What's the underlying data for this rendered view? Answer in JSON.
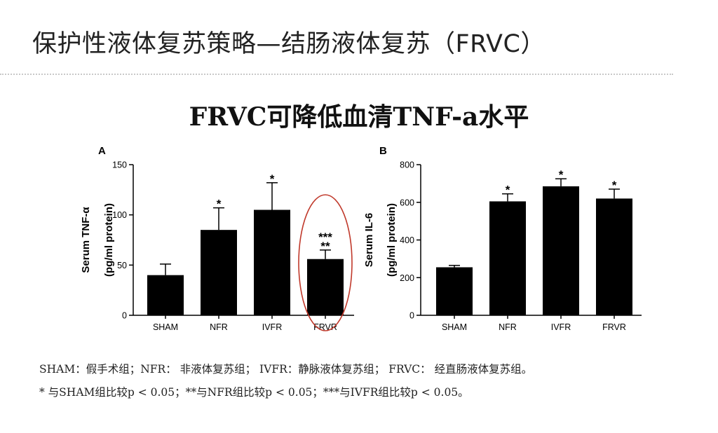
{
  "slide": {
    "title": "保护性液体复苏策略—结肠液体复苏（FRVC）",
    "headline": "FRVC可降低血清TNF-a水平"
  },
  "chart_data": [
    {
      "type": "bar",
      "panel": "A",
      "categories": [
        "SHAM",
        "NFR",
        "IVFR",
        "FRVR"
      ],
      "values": [
        40,
        85,
        105,
        56
      ],
      "errors": [
        11,
        22,
        27,
        9
      ],
      "significance": [
        "",
        "*",
        "*",
        "***\n**"
      ],
      "ylabel_line1": "Serum TNF-α",
      "ylabel_line2": "(pg/ml protein)",
      "ylim": [
        0,
        150
      ],
      "yticks": [
        0,
        50,
        100,
        150
      ],
      "highlight_category": "FRVR",
      "highlight_color": "#c0392b"
    },
    {
      "type": "bar",
      "panel": "B",
      "categories": [
        "SHAM",
        "NFR",
        "IVFR",
        "FRVR"
      ],
      "values": [
        255,
        605,
        685,
        620
      ],
      "errors": [
        10,
        40,
        40,
        50
      ],
      "significance": [
        "",
        "*",
        "*",
        "*"
      ],
      "ylabel_line1": "Serum IL-6",
      "ylabel_line2": "(pg/ml protein)",
      "ylim": [
        0,
        800
      ],
      "yticks": [
        0,
        200,
        400,
        600,
        800
      ]
    }
  ],
  "footnotes": {
    "line1": "SHAM：假手术组；NFR： 非液体复苏组； IVFR：静脉液体复苏组； FRVC： 经直肠液体复苏组。",
    "line2": "* 与SHAM组比较p < 0.05；**与NFR组比较p < 0.05；***与IVFR组比较p < 0.05。"
  }
}
